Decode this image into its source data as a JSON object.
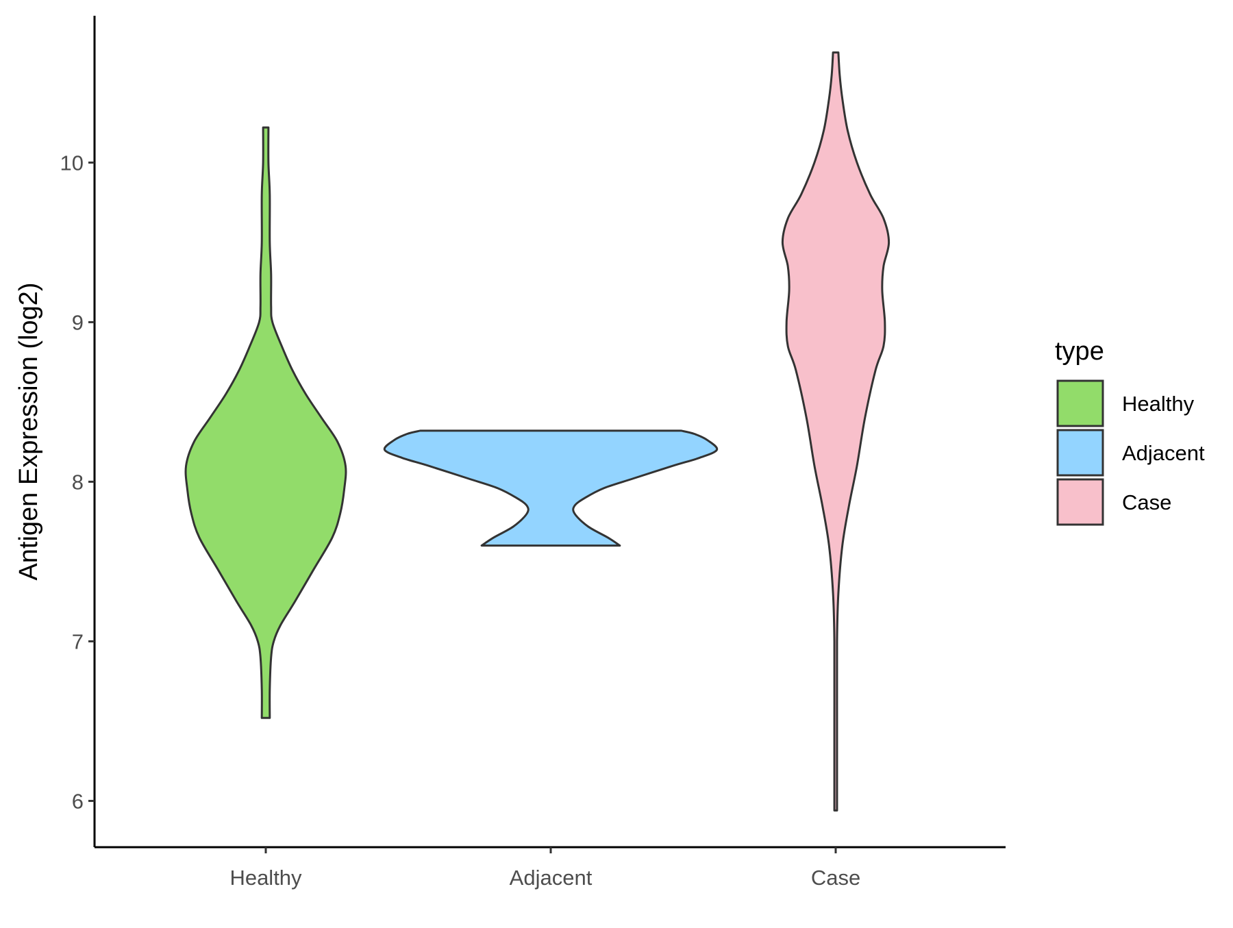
{
  "chart_data": {
    "type": "violin",
    "xlabel": "",
    "ylabel": "Antigen Expression (log2)",
    "ylim": [
      5.71,
      10.92
    ],
    "y_ticks": [
      6,
      7,
      8,
      9,
      10
    ],
    "categories": [
      "Healthy",
      "Adjacent",
      "Case"
    ],
    "legend": {
      "title": "type",
      "position": "right",
      "entries": [
        {
          "label": "Healthy",
          "color": "#92dc6a"
        },
        {
          "label": "Adjacent",
          "color": "#93d4ff"
        },
        {
          "label": "Case",
          "color": "#f8c0cb"
        }
      ]
    },
    "grid": false,
    "outline_color": "#333333",
    "violins": [
      {
        "name": "Healthy",
        "color": "#92dc6a",
        "y_min": 6.52,
        "y_max": 10.22,
        "profile": [
          [
            6.52,
            0.03
          ],
          [
            6.7,
            0.03
          ],
          [
            6.9,
            0.04
          ],
          [
            7.0,
            0.06
          ],
          [
            7.1,
            0.11
          ],
          [
            7.25,
            0.22
          ],
          [
            7.45,
            0.36
          ],
          [
            7.65,
            0.5
          ],
          [
            7.8,
            0.56
          ],
          [
            7.95,
            0.59
          ],
          [
            8.1,
            0.6
          ],
          [
            8.25,
            0.54
          ],
          [
            8.4,
            0.42
          ],
          [
            8.55,
            0.3
          ],
          [
            8.7,
            0.2
          ],
          [
            8.85,
            0.12
          ],
          [
            9.0,
            0.05
          ],
          [
            9.1,
            0.04
          ],
          [
            9.3,
            0.04
          ],
          [
            9.5,
            0.03
          ],
          [
            9.8,
            0.03
          ],
          [
            10.0,
            0.02
          ],
          [
            10.22,
            0.02
          ]
        ]
      },
      {
        "name": "Adjacent",
        "color": "#93d4ff",
        "y_min": 7.6,
        "y_max": 8.32,
        "profile": [
          [
            7.6,
            0.52
          ],
          [
            7.65,
            0.43
          ],
          [
            7.72,
            0.28
          ],
          [
            7.8,
            0.18
          ],
          [
            7.85,
            0.18
          ],
          [
            7.9,
            0.26
          ],
          [
            7.96,
            0.4
          ],
          [
            8.02,
            0.62
          ],
          [
            8.1,
            0.92
          ],
          [
            8.15,
            1.12
          ],
          [
            8.2,
            1.25
          ],
          [
            8.26,
            1.18
          ],
          [
            8.3,
            1.08
          ],
          [
            8.32,
            0.98
          ]
        ]
      },
      {
        "name": "Case",
        "color": "#f8c0cb",
        "y_min": 5.94,
        "y_max": 10.69,
        "profile": [
          [
            5.94,
            0.01
          ],
          [
            6.5,
            0.01
          ],
          [
            7.0,
            0.01
          ],
          [
            7.3,
            0.02
          ],
          [
            7.6,
            0.05
          ],
          [
            7.85,
            0.1
          ],
          [
            8.1,
            0.16
          ],
          [
            8.4,
            0.22
          ],
          [
            8.7,
            0.3
          ],
          [
            8.85,
            0.36
          ],
          [
            9.0,
            0.37
          ],
          [
            9.2,
            0.35
          ],
          [
            9.35,
            0.36
          ],
          [
            9.5,
            0.4
          ],
          [
            9.65,
            0.36
          ],
          [
            9.8,
            0.26
          ],
          [
            10.0,
            0.16
          ],
          [
            10.2,
            0.09
          ],
          [
            10.4,
            0.05
          ],
          [
            10.55,
            0.03
          ],
          [
            10.69,
            0.02
          ]
        ]
      }
    ]
  }
}
